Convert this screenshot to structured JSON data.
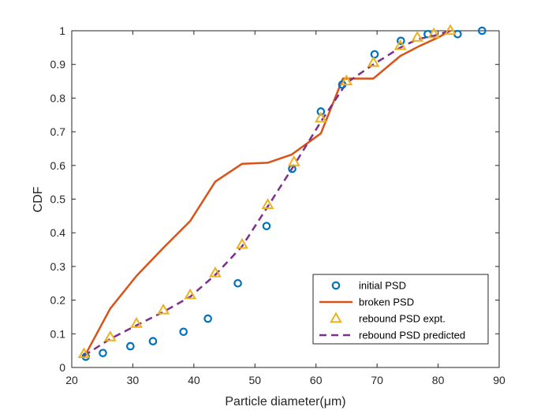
{
  "chart_data": {
    "type": "line",
    "xlabel": "Particle diameter(μm)",
    "ylabel": "CDF",
    "xlim": [
      20,
      90
    ],
    "ylim": [
      0,
      1
    ],
    "xticks": [
      "20",
      "30",
      "40",
      "50",
      "60",
      "70",
      "80",
      "90"
    ],
    "yticks": [
      "0",
      "0.1",
      "0.2",
      "0.3",
      "0.4",
      "0.5",
      "0.6",
      "0.7",
      "0.8",
      "0.9",
      "1"
    ],
    "grid": false,
    "legend_position": "bottom-right",
    "series": [
      {
        "name": "initial PSD",
        "style": "circle-markers",
        "color": "#0072BD",
        "x": [
          22.3,
          25.1,
          29.6,
          33.3,
          38.3,
          42.3,
          47.2,
          51.9,
          56.1,
          60.8,
          64.3,
          69.6,
          73.9,
          78.3,
          83.2,
          87.2
        ],
        "y": [
          0.032,
          0.043,
          0.063,
          0.078,
          0.106,
          0.145,
          0.25,
          0.42,
          0.59,
          0.76,
          0.84,
          0.93,
          0.97,
          0.99,
          0.99,
          1.0
        ]
      },
      {
        "name": "broken PSD",
        "style": "solid-line",
        "color": "#D95319",
        "x": [
          22.0,
          26.3,
          30.6,
          35.0,
          39.4,
          43.5,
          47.9,
          52.1,
          56.0,
          60.8,
          64.4,
          69.4,
          73.8,
          77.0,
          80.0,
          82.0
        ],
        "y": [
          0.03,
          0.175,
          0.272,
          0.355,
          0.435,
          0.552,
          0.605,
          0.608,
          0.632,
          0.695,
          0.858,
          0.858,
          0.925,
          0.955,
          0.98,
          1.0
        ]
      },
      {
        "name": "rebound PSD expt.",
        "style": "triangle-markers",
        "color": "#EDB120",
        "x": [
          22.0,
          26.3,
          30.6,
          35.0,
          39.4,
          43.5,
          47.9,
          52.1,
          56.4,
          60.8,
          65.0,
          69.4,
          73.8,
          76.6,
          79.3,
          82.0
        ],
        "y": [
          0.04,
          0.09,
          0.13,
          0.17,
          0.215,
          0.28,
          0.365,
          0.483,
          0.61,
          0.74,
          0.85,
          0.905,
          0.955,
          0.98,
          0.99,
          1.0
        ]
      },
      {
        "name": "rebound PSD predicted",
        "style": "dashed-line",
        "color": "#7E2F8E",
        "x": [
          22.0,
          26.3,
          30.6,
          35.0,
          39.4,
          43.5,
          47.9,
          52.1,
          56.4,
          60.8,
          65.0,
          69.4,
          73.8,
          76.6,
          79.3,
          82.0
        ],
        "y": [
          0.035,
          0.085,
          0.125,
          0.165,
          0.21,
          0.275,
          0.36,
          0.478,
          0.6,
          0.73,
          0.845,
          0.9,
          0.95,
          0.975,
          0.985,
          1.0
        ]
      }
    ]
  }
}
